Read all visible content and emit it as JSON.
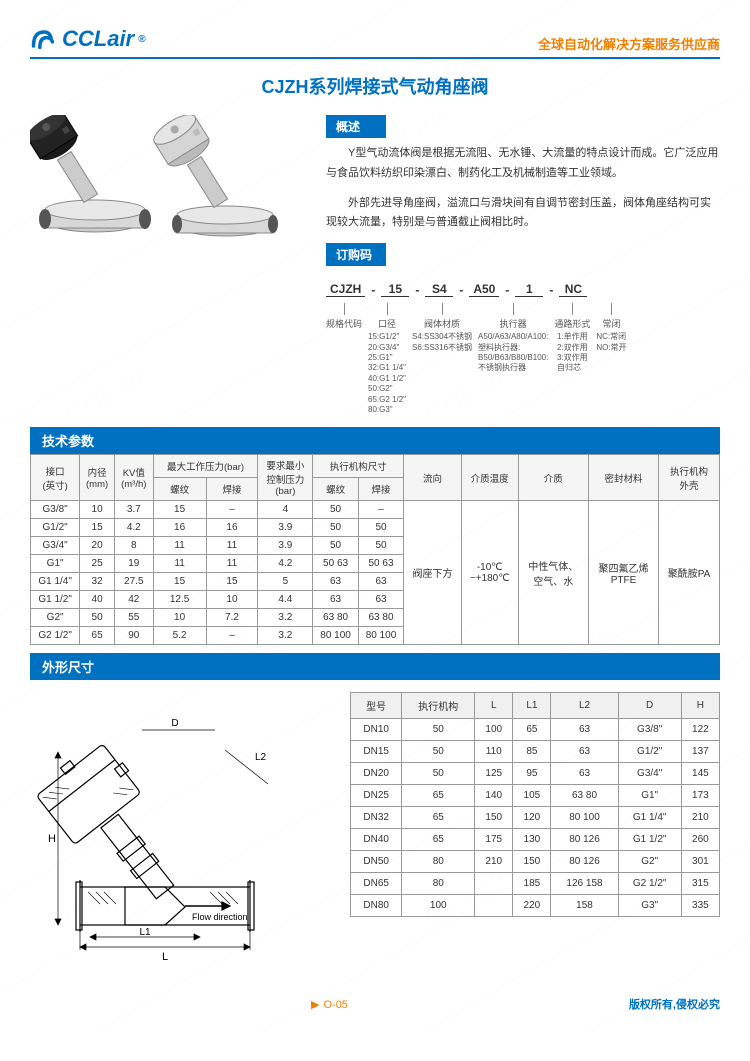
{
  "header": {
    "brand": "CCLair",
    "tagline": "全球自动化解决方案服务供应商"
  },
  "title": "CJZH系列焊接式气动角座阀",
  "overview": {
    "heading": "概述",
    "p1": "Y型气动流体阀是根据无流阻、无水锤、大流量的特点设计而成。它广泛应用与食品饮料纺织印染漂白、制药化工及机械制造等工业领域。",
    "p2": "外部先进导角座阀，溢流口与滑块间有自调节密封压盖，阀体角座结构可实现较大流量，特别是与普通截止阀相比时。"
  },
  "orderCode": {
    "heading": "订购码",
    "segments": [
      "CJZH",
      "15",
      "S4",
      "A50",
      "1",
      "NC"
    ],
    "labels": [
      "规格代码",
      "口径",
      "阀体材质",
      "执行器",
      "通路形式",
      "常闭"
    ],
    "details": [
      "",
      "15:G1/2\"\n20:G3/4\"\n25:G1\"\n32:G1 1/4\"\n40:G1 1/2\"\n50:G2\"\n65:G2 1/2\"\n80:G3\"",
      "S4:SS304不锈钢\nS6:SS316不锈钢",
      "A50/A63/A80/A100:\n塑料执行器:\nB50/B63/B80/B100:\n不锈钢执行器",
      "1:单作用\n2:双作用\n3:双作用\n自归芯",
      "NC:常闭\nNO:常开"
    ]
  },
  "techParams": {
    "heading": "技术参数",
    "headers": [
      "接口\n(英寸)",
      "内径\n(mm)",
      "KV值\n(m³/h)",
      "最大工作压力(bar)",
      "",
      "要求最小\n控制压力\n(bar)",
      "执行机构尺寸",
      "",
      "流向",
      "介质温度",
      "介质",
      "密封材料",
      "执行机构\n外壳"
    ],
    "subHeaders": [
      "",
      "",
      "",
      "螺纹",
      "焊接",
      "",
      "螺纹",
      "焊接",
      "",
      "",
      "",
      "",
      ""
    ],
    "rows": [
      [
        "G3/8\"",
        "10",
        "3.7",
        "15",
        "–",
        "4",
        "50",
        "–"
      ],
      [
        "G1/2\"",
        "15",
        "4.2",
        "16",
        "16",
        "3.9",
        "50",
        "50"
      ],
      [
        "G3/4\"",
        "20",
        "8",
        "11",
        "11",
        "3.9",
        "50",
        "50"
      ],
      [
        "G1\"",
        "25",
        "19",
        "11",
        "11",
        "4.2",
        "50 63",
        "50 63"
      ],
      [
        "G1 1/4\"",
        "32",
        "27.5",
        "15",
        "15",
        "5",
        "63",
        "63"
      ],
      [
        "G1 1/2\"",
        "40",
        "42",
        "12.5",
        "10",
        "4.4",
        "63",
        "63"
      ],
      [
        "G2\"",
        "50",
        "55",
        "10",
        "7.2",
        "3.2",
        "63 80",
        "63 80"
      ],
      [
        "G2 1/2\"",
        "65",
        "90",
        "5.2",
        "–",
        "3.2",
        "80 100",
        "80 100"
      ]
    ],
    "merged": {
      "flow": "阀座下方",
      "temp": "-10℃\n~+180℃",
      "medium": "中性气体、\n空气、水",
      "seal": "聚四氟乙烯\nPTFE",
      "housing": "聚酰胺PA"
    }
  },
  "dimensions": {
    "heading": "外形尺寸",
    "flowLabel": "Flow direction",
    "headers": [
      "型号",
      "执行机构",
      "L",
      "L1",
      "L2",
      "D",
      "H"
    ],
    "rows": [
      [
        "DN10",
        "50",
        "100",
        "65",
        "63",
        "G3/8\"",
        "122"
      ],
      [
        "DN15",
        "50",
        "110",
        "85",
        "63",
        "G1/2\"",
        "137"
      ],
      [
        "DN20",
        "50",
        "125",
        "95",
        "63",
        "G3/4\"",
        "145"
      ],
      [
        "DN25",
        "65",
        "140",
        "105",
        "63 80",
        "G1\"",
        "173"
      ],
      [
        "DN32",
        "65",
        "150",
        "120",
        "80 100",
        "G1 1/4\"",
        "210"
      ],
      [
        "DN40",
        "65",
        "175",
        "130",
        "80 126",
        "G1 1/2\"",
        "260"
      ],
      [
        "DN50",
        "80",
        "210",
        "150",
        "80 126",
        "G2\"",
        "301"
      ],
      [
        "DN65",
        "80",
        "",
        "185",
        "126 158",
        "G2 1/2\"",
        "315"
      ],
      [
        "DN80",
        "100",
        "",
        "220",
        "158",
        "G3\"",
        "335"
      ]
    ]
  },
  "footer": {
    "pageNum": "O-05",
    "copyright": "版权所有,侵权必究"
  },
  "colors": {
    "primary": "#0070c0",
    "accent": "#f08000",
    "border": "#999999"
  }
}
